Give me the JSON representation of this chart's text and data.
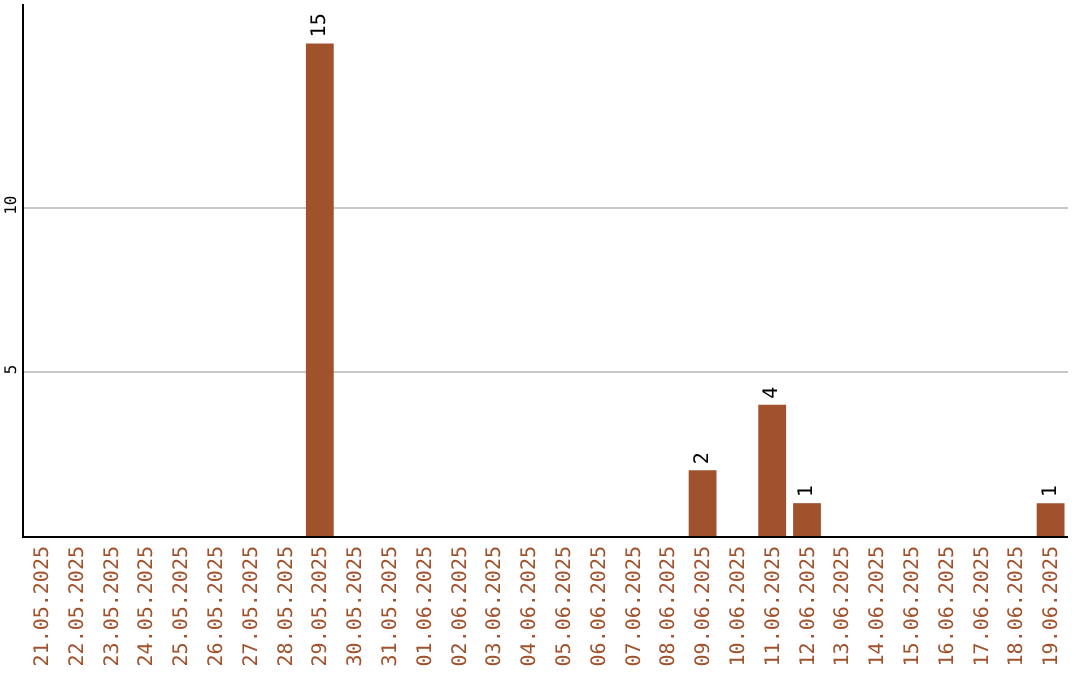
{
  "chart_data": {
    "type": "bar",
    "categories": [
      "21.05.2025",
      "22.05.2025",
      "23.05.2025",
      "24.05.2025",
      "25.05.2025",
      "26.05.2025",
      "27.05.2025",
      "28.05.2025",
      "29.05.2025",
      "30.05.2025",
      "31.05.2025",
      "01.06.2025",
      "02.06.2025",
      "03.06.2025",
      "04.06.2025",
      "05.06.2025",
      "06.06.2025",
      "07.06.2025",
      "08.06.2025",
      "09.06.2025",
      "10.06.2025",
      "11.06.2025",
      "12.06.2025",
      "13.06.2025",
      "14.06.2025",
      "15.06.2025",
      "16.06.2025",
      "17.06.2025",
      "18.06.2025",
      "19.06.2025"
    ],
    "values": [
      0,
      0,
      0,
      0,
      0,
      0,
      0,
      0,
      15,
      0,
      0,
      0,
      0,
      0,
      0,
      0,
      0,
      0,
      0,
      2,
      0,
      4,
      1,
      0,
      0,
      0,
      0,
      0,
      0,
      1
    ],
    "value_labels": [
      null,
      null,
      null,
      null,
      null,
      null,
      null,
      null,
      "15",
      null,
      null,
      null,
      null,
      null,
      null,
      null,
      null,
      null,
      null,
      "2",
      null,
      "4",
      "1",
      null,
      null,
      null,
      null,
      null,
      null,
      "1"
    ],
    "color": "#a0522d",
    "ylim": [
      0,
      16.2
    ],
    "yticks": [
      5,
      10
    ],
    "grid": "y"
  }
}
